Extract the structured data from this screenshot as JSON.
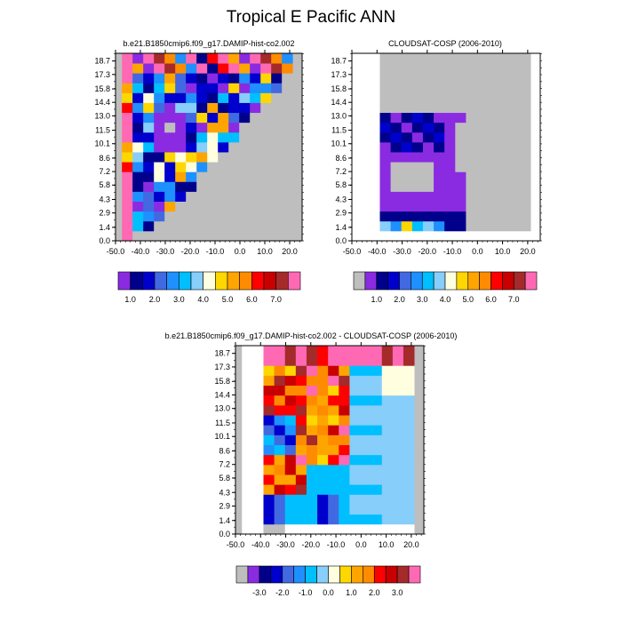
{
  "title": "Tropical E Pacific ANN",
  "colors": {
    "missing": "#bebebe",
    "diff_palette": [
      "#bebebe",
      "#8a2be2",
      "#00008b",
      "#0000cd",
      "#4169e1",
      "#1e90ff",
      "#00bfff",
      "#87cefa",
      "#ffffe0",
      "#ffd700",
      "#ffa500",
      "#ff8c00",
      "#ff0000",
      "#c80000",
      "#a52a2a",
      "#ff69b4"
    ],
    "field_palette": [
      "#8a2be2",
      "#00008b",
      "#0000cd",
      "#4169e1",
      "#1e90ff",
      "#00bfff",
      "#87cefa",
      "#ffffe0",
      "#ffd700",
      "#ffa500",
      "#ff8c00",
      "#ff0000",
      "#c80000",
      "#a52a2a",
      "#ff69b4"
    ]
  },
  "chart_data": [
    {
      "type": "heatmap",
      "title": "b.e21.B1850cmip6.f09_g17.DAMIP-hist-co2.002",
      "x_ticks": [
        "-50.0",
        "-40.0",
        "-30.0",
        "-20.0",
        "-10.0",
        "0.0",
        "10.0",
        "20.0"
      ],
      "y_ticks": [
        "0.0",
        "1.4",
        "2.9",
        "4.3",
        "5.8",
        "7.2",
        "8.6",
        "10.1",
        "11.5",
        "13.0",
        "14.4",
        "15.8",
        "17.3",
        "18.7"
      ],
      "xlim": [
        -50,
        25
      ],
      "ylim": [
        0,
        19.5
      ],
      "colorbar_labels": [
        "1.0",
        "2.0",
        "3.0",
        "4.0",
        "5.0",
        "6.0",
        "7.0"
      ],
      "colorbar_count": 15,
      "valid_region_description": "lower-right triangle missing"
    },
    {
      "type": "heatmap",
      "title": "CLOUDSAT-COSP (2006-2010)",
      "x_ticks": [
        "-50.0",
        "-40.0",
        "-30.0",
        "-20.0",
        "-10.0",
        "0.0",
        "10.0",
        "20.0"
      ],
      "y_ticks": [
        "0.0",
        "1.4",
        "2.9",
        "4.3",
        "5.8",
        "7.2",
        "8.6",
        "10.1",
        "11.5",
        "13.0",
        "14.4",
        "15.8",
        "17.3",
        "18.7"
      ],
      "xlim": [
        -50,
        25
      ],
      "ylim": [
        0,
        19.5
      ],
      "colorbar_labels": [
        "1.0",
        "2.0",
        "3.0",
        "4.0",
        "5.0",
        "6.0",
        "7.0"
      ],
      "colorbar_count": 16
    },
    {
      "type": "heatmap",
      "title": "b.e21.B1850cmip6.f09_g17.DAMIP-hist-co2.002 - CLOUDSAT-COSP (2006-2010)",
      "x_ticks": [
        "-50.0",
        "-40.0",
        "-30.0",
        "-20.0",
        "-10.0",
        "0.0",
        "10.0",
        "20.0"
      ],
      "y_ticks": [
        "0.0",
        "1.4",
        "2.9",
        "4.3",
        "5.8",
        "7.2",
        "8.6",
        "10.1",
        "11.5",
        "13.0",
        "14.4",
        "15.8",
        "17.3",
        "18.7"
      ],
      "xlim": [
        -50,
        25
      ],
      "ylim": [
        0,
        19.5
      ],
      "colorbar_labels": [
        "-3.0",
        "-2.0",
        "-1.0",
        "0.0",
        "1.0",
        "2.0",
        "3.0"
      ],
      "colorbar_count": 16
    }
  ]
}
